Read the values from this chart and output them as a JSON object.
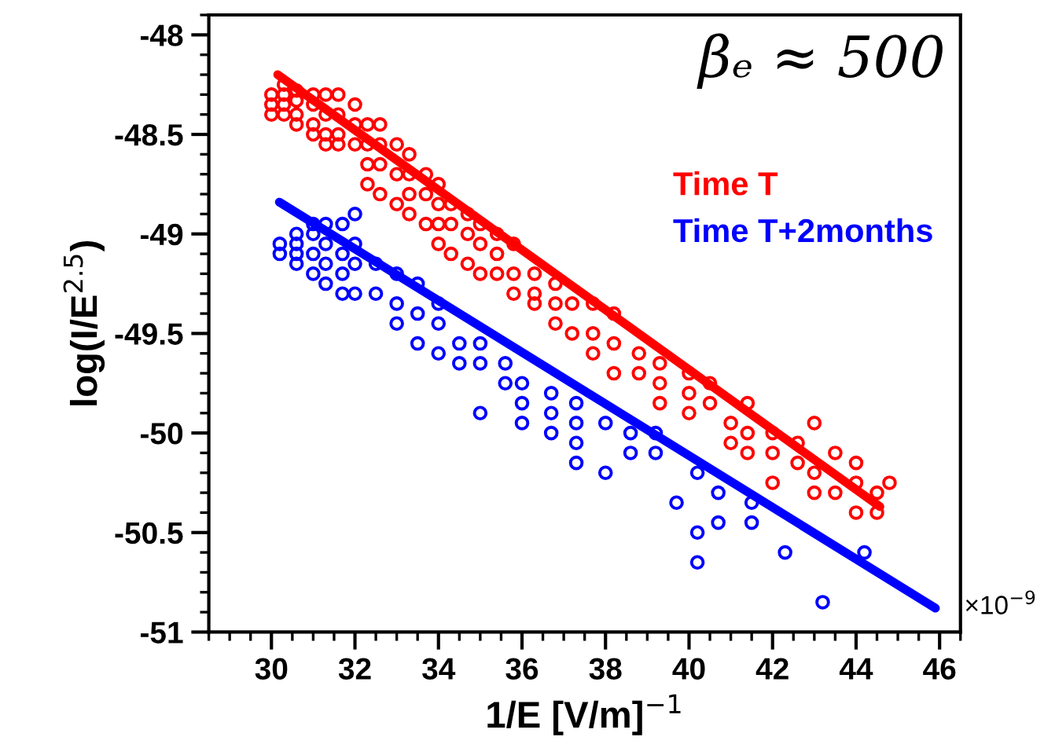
{
  "chart_data": {
    "type": "scatter",
    "xlabel": "1/E [V/m]$^{−1}$",
    "ylabel": "log(I/E$^{2.5}$)",
    "xlim": [
      28.5,
      46.5
    ],
    "xticks": [
      30,
      32,
      34,
      36,
      38,
      40,
      42,
      44,
      46
    ],
    "ylim": [
      -51,
      -47.9
    ],
    "yticks": [
      -48,
      -48.5,
      -49,
      -49.5,
      -50,
      -50.5,
      -51
    ],
    "grid": false,
    "legend": "top right",
    "annotations": [
      "βₑ ≈ 500",
      "×10$^{−9}$"
    ],
    "series": [
      {
        "name": "Time T",
        "color": "#ff0000",
        "marker": "circle",
        "x": [
          30.0,
          30.0,
          30.0,
          30.3,
          30.3,
          30.3,
          30.3,
          30.6,
          30.6,
          30.6,
          30.6,
          31.0,
          31.0,
          31.0,
          31.0,
          31.3,
          31.3,
          31.3,
          31.3,
          31.6,
          31.6,
          31.6,
          31.6,
          32.0,
          32.0,
          32.0,
          32.3,
          32.3,
          32.3,
          32.3,
          32.6,
          32.6,
          32.6,
          32.6,
          33.0,
          33.0,
          33.0,
          33.3,
          33.3,
          33.3,
          33.3,
          33.7,
          33.7,
          33.7,
          34.0,
          34.0,
          34.0,
          34.0,
          34.3,
          34.3,
          34.3,
          34.7,
          34.7,
          34.7,
          35.0,
          35.0,
          35.0,
          35.4,
          35.4,
          35.4,
          35.8,
          35.8,
          35.8,
          36.3,
          36.3,
          36.3,
          36.8,
          36.8,
          36.8,
          37.2,
          37.2,
          37.7,
          37.7,
          37.7,
          38.2,
          38.2,
          38.2,
          38.8,
          38.8,
          39.3,
          39.3,
          39.3,
          40.0,
          40.0,
          40.0,
          40.5,
          40.5,
          41.0,
          41.0,
          41.4,
          41.4,
          41.4,
          42.0,
          42.0,
          42.0,
          42.6,
          42.6,
          43.0,
          43.0,
          43.0,
          43.5,
          43.5,
          44.0,
          44.0,
          44.0,
          44.5,
          44.5,
          44.8
        ],
        "values": [
          -48.3,
          -48.35,
          -48.4,
          -48.25,
          -48.3,
          -48.35,
          -48.4,
          -48.28,
          -48.33,
          -48.4,
          -48.45,
          -48.3,
          -48.35,
          -48.45,
          -48.5,
          -48.3,
          -48.4,
          -48.5,
          -48.55,
          -48.3,
          -48.4,
          -48.5,
          -48.55,
          -48.35,
          -48.45,
          -48.55,
          -48.45,
          -48.55,
          -48.65,
          -48.75,
          -48.45,
          -48.55,
          -48.65,
          -48.8,
          -48.55,
          -48.7,
          -48.85,
          -48.6,
          -48.7,
          -48.8,
          -48.9,
          -48.7,
          -48.8,
          -48.95,
          -48.75,
          -48.85,
          -48.95,
          -49.05,
          -48.85,
          -48.95,
          -49.1,
          -48.9,
          -49.0,
          -49.15,
          -48.95,
          -49.05,
          -49.2,
          -49.0,
          -49.1,
          -49.2,
          -49.05,
          -49.2,
          -49.3,
          -49.2,
          -49.3,
          -49.35,
          -49.25,
          -49.35,
          -49.45,
          -49.35,
          -49.5,
          -49.35,
          -49.5,
          -49.6,
          -49.4,
          -49.55,
          -49.7,
          -49.6,
          -49.7,
          -49.65,
          -49.75,
          -49.85,
          -49.7,
          -49.8,
          -49.9,
          -49.75,
          -49.85,
          -49.95,
          -50.05,
          -49.85,
          -50.0,
          -50.1,
          -50.0,
          -50.1,
          -50.25,
          -50.05,
          -50.15,
          -49.95,
          -50.2,
          -50.3,
          -50.1,
          -50.3,
          -50.15,
          -50.25,
          -50.4,
          -50.3,
          -50.4,
          -50.25
        ]
      },
      {
        "type": "line",
        "color": "#ff0000",
        "x": [
          30.15,
          44.57
        ],
        "values": [
          -48.2,
          -50.37
        ]
      },
      {
        "name": "Time T+2months",
        "color": "#0000ff",
        "marker": "circle",
        "x": [
          30.2,
          30.2,
          30.6,
          30.6,
          30.6,
          30.6,
          31.0,
          31.0,
          31.0,
          31.0,
          31.3,
          31.3,
          31.3,
          31.3,
          31.7,
          31.7,
          31.7,
          31.7,
          32.0,
          32.0,
          32.0,
          32.0,
          32.5,
          32.5,
          33.0,
          33.0,
          33.0,
          33.5,
          33.5,
          33.5,
          34.0,
          34.0,
          34.0,
          34.5,
          34.5,
          35.0,
          35.0,
          35.0,
          35.6,
          35.6,
          36.0,
          36.0,
          36.0,
          36.7,
          36.7,
          36.7,
          37.3,
          37.3,
          37.3,
          37.3,
          38.0,
          38.0,
          38.6,
          38.6,
          39.2,
          39.2,
          39.7,
          40.2,
          40.2,
          40.2,
          40.7,
          40.7,
          41.5,
          41.5,
          42.3,
          43.2,
          44.2
        ],
        "values": [
          -49.05,
          -49.1,
          -49.0,
          -49.05,
          -49.1,
          -49.15,
          -48.95,
          -49.0,
          -49.1,
          -49.2,
          -48.95,
          -49.05,
          -49.15,
          -49.25,
          -48.95,
          -49.1,
          -49.2,
          -49.3,
          -48.9,
          -49.05,
          -49.15,
          -49.3,
          -49.15,
          -49.3,
          -49.2,
          -49.35,
          -49.45,
          -49.25,
          -49.4,
          -49.55,
          -49.35,
          -49.45,
          -49.6,
          -49.55,
          -49.65,
          -49.65,
          -49.55,
          -49.9,
          -49.65,
          -49.75,
          -49.75,
          -49.85,
          -49.95,
          -49.8,
          -49.9,
          -50.0,
          -49.85,
          -49.95,
          -50.05,
          -50.15,
          -49.95,
          -50.2,
          -50.0,
          -50.1,
          -50.0,
          -50.1,
          -50.35,
          -50.2,
          -50.5,
          -50.65,
          -50.3,
          -50.45,
          -50.45,
          -50.35,
          -50.6,
          -50.85,
          -50.6
        ]
      },
      {
        "type": "line",
        "color": "#0000ff",
        "x": [
          30.19,
          45.9
        ],
        "values": [
          -48.84,
          -50.88
        ]
      }
    ]
  }
}
